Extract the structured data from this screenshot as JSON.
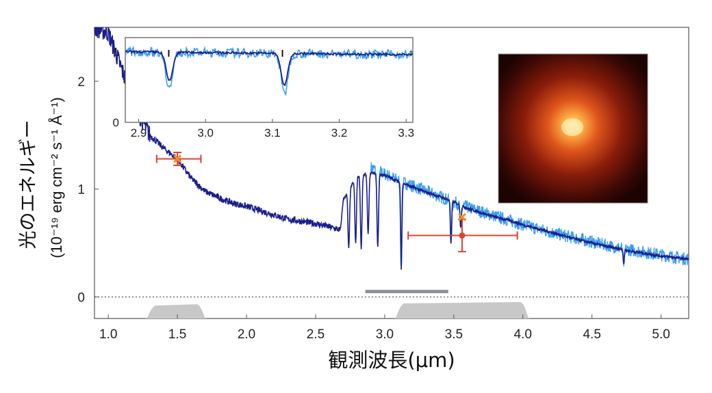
{
  "chart_data": {
    "type": "line",
    "xlabel": "観測波長(μm)",
    "ylabel_line1": "光のエネルギー",
    "ylabel_line2": "(10⁻¹⁹ erg cm⁻² s⁻¹ Å⁻¹)",
    "xlim": [
      0.9,
      5.2
    ],
    "ylim": [
      -0.2,
      2.5
    ],
    "x_ticks": [
      "1.0",
      "1.5",
      "2.0",
      "2.5",
      "3.0",
      "3.5",
      "4.0",
      "4.5",
      "5.0"
    ],
    "y_ticks": [
      "0",
      "1",
      "2"
    ],
    "zero_line": true,
    "series": [
      {
        "color": "#1a1f8c",
        "x": [
          0.9,
          1.0,
          1.1,
          1.2,
          1.3,
          1.4,
          1.5,
          1.6,
          1.7,
          1.8,
          1.9,
          2.0,
          2.1,
          2.2,
          2.3,
          2.4,
          2.5,
          2.6,
          2.68,
          2.7,
          2.8,
          2.9,
          3.0,
          3.1,
          3.2,
          3.3,
          3.4,
          3.5,
          3.6,
          3.7,
          3.8,
          3.9,
          4.0,
          4.2,
          4.4,
          4.6,
          4.8,
          5.0,
          5.2
        ],
        "y": [
          2.5,
          2.45,
          2.1,
          1.75,
          1.5,
          1.38,
          1.28,
          1.1,
          0.98,
          0.92,
          0.87,
          0.84,
          0.8,
          0.76,
          0.72,
          0.7,
          0.68,
          0.65,
          0.62,
          0.9,
          1.12,
          1.15,
          1.13,
          1.07,
          1.02,
          0.97,
          0.93,
          0.88,
          0.82,
          0.78,
          0.74,
          0.71,
          0.67,
          0.6,
          0.53,
          0.47,
          0.42,
          0.38,
          0.35
        ]
      },
      {
        "color": "#3c9ef0",
        "x": [
          2.9,
          3.0,
          3.1,
          3.2,
          3.3,
          3.4,
          3.5,
          3.6,
          3.7,
          3.8,
          3.9,
          4.0,
          4.2,
          4.4,
          4.6,
          4.8,
          5.0,
          5.2
        ],
        "y": [
          1.2,
          1.14,
          1.08,
          1.03,
          0.98,
          0.93,
          0.88,
          0.83,
          0.79,
          0.75,
          0.71,
          0.67,
          0.6,
          0.54,
          0.48,
          0.43,
          0.39,
          0.35
        ]
      }
    ],
    "absorption_dips": [
      {
        "x": 2.74,
        "depth": 0.55
      },
      {
        "x": 2.79,
        "depth": 0.55
      },
      {
        "x": 2.83,
        "depth": 0.6
      },
      {
        "x": 2.88,
        "depth": 0.5
      },
      {
        "x": 2.95,
        "depth": 0.6
      },
      {
        "x": 3.12,
        "depth": 0.75
      },
      {
        "x": 3.48,
        "depth": 0.45
      },
      {
        "x": 3.55,
        "depth": 0.25
      },
      {
        "x": 4.73,
        "depth": 0.3
      }
    ],
    "photometry": [
      {
        "x": 1.5,
        "y": 1.28,
        "xerr": [
          1.35,
          1.67
        ],
        "yerr": [
          1.22,
          1.34
        ],
        "marker": "x"
      },
      {
        "x": 3.56,
        "y": 0.57,
        "xerr": [
          3.17,
          3.96
        ],
        "yerr": [
          0.42,
          0.72
        ],
        "marker": "o"
      },
      {
        "x": 3.56,
        "y": 0.74,
        "xerr": [
          3.56,
          3.56
        ],
        "yerr": [
          0.74,
          0.74
        ],
        "marker": "x"
      }
    ],
    "grey_bar": {
      "x": [
        2.86,
        3.46
      ],
      "y": 0.05
    },
    "filters": [
      {
        "x": [
          1.3,
          1.68
        ],
        "level": 0.12
      },
      {
        "x": [
          3.1,
          4.02
        ],
        "level": 0.14
      }
    ],
    "inset": {
      "xlim": [
        2.88,
        3.31
      ],
      "ylim": [
        0,
        1.2
      ],
      "x_ticks": [
        "2.9",
        "3.0",
        "3.1",
        "3.2",
        "3.3"
      ],
      "y_ticks": [
        "0",
        "1"
      ],
      "markers": [
        2.945,
        3.115
      ],
      "dips": [
        {
          "x": 2.946,
          "depth": 0.45,
          "width": 0.007
        },
        {
          "x": 3.118,
          "depth": 0.5,
          "width": 0.007
        }
      ]
    }
  },
  "image_panel": {
    "description_color": "#d8461c"
  }
}
